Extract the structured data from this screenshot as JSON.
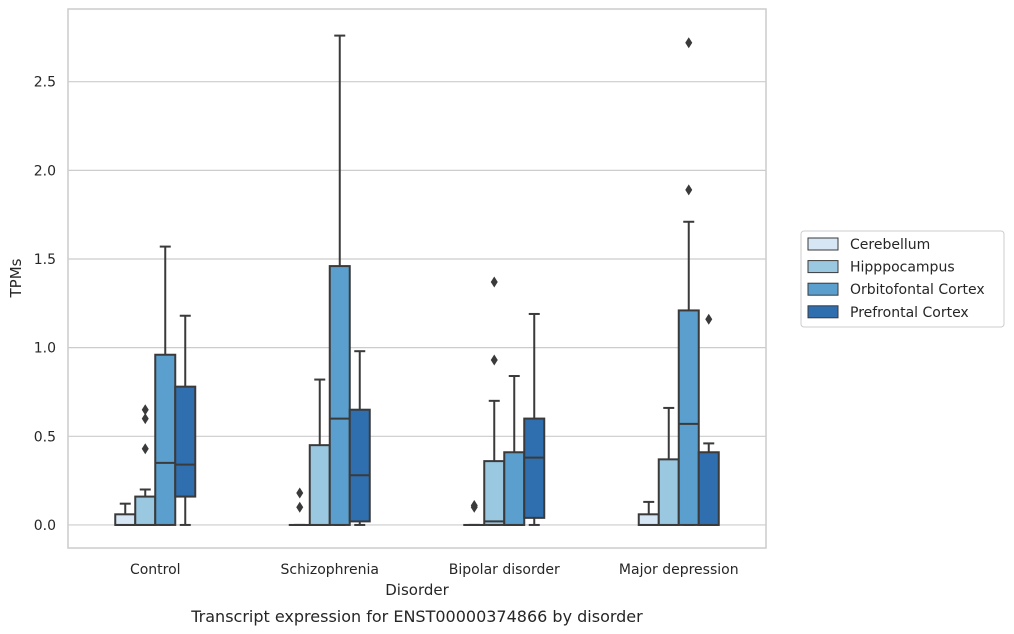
{
  "caption": "Transcript expression for ENST00000374866 by disorder",
  "chart_data": {
    "type": "box",
    "xlabel": "Disorder",
    "ylabel": "TPMs",
    "ylim": [
      -0.13,
      2.91
    ],
    "yticks": [
      "0.0",
      "0.5",
      "1.0",
      "1.5",
      "2.0",
      "2.5"
    ],
    "grid": "horizontal",
    "legend_position": "right",
    "categories": [
      "Control",
      "Schizophrenia",
      "Bipolar disorder",
      "Major depression"
    ],
    "series": [
      {
        "name": "Cerebellum",
        "color": "#d6e6f4",
        "boxes": [
          {
            "min": 0.0,
            "q1": 0.0,
            "median": 0.0,
            "q3": 0.06,
            "max": 0.12,
            "outliers": []
          },
          {
            "min": 0.0,
            "q1": 0.0,
            "median": 0.0,
            "q3": 0.0,
            "max": 0.0,
            "outliers": [
              0.1,
              0.18
            ]
          },
          {
            "min": 0.0,
            "q1": 0.0,
            "median": 0.0,
            "q3": 0.0,
            "max": 0.0,
            "outliers": [
              0.1,
              0.11
            ]
          },
          {
            "min": 0.0,
            "q1": 0.0,
            "median": 0.0,
            "q3": 0.06,
            "max": 0.13,
            "outliers": []
          }
        ]
      },
      {
        "name": "Hipppocampus",
        "color": "#9ac8e0",
        "boxes": [
          {
            "min": 0.0,
            "q1": 0.0,
            "median": 0.0,
            "q3": 0.16,
            "max": 0.2,
            "outliers": [
              0.43,
              0.6,
              0.65
            ]
          },
          {
            "min": 0.0,
            "q1": 0.0,
            "median": 0.0,
            "q3": 0.45,
            "max": 0.82,
            "outliers": []
          },
          {
            "min": 0.0,
            "q1": 0.0,
            "median": 0.02,
            "q3": 0.36,
            "max": 0.7,
            "outliers": [
              0.93,
              1.37
            ]
          },
          {
            "min": 0.0,
            "q1": 0.0,
            "median": 0.0,
            "q3": 0.37,
            "max": 0.66,
            "outliers": []
          }
        ]
      },
      {
        "name": "Orbitofontal Cortex",
        "color": "#5a9fcd",
        "boxes": [
          {
            "min": 0.0,
            "q1": 0.0,
            "median": 0.35,
            "q3": 0.96,
            "max": 1.57,
            "outliers": []
          },
          {
            "min": 0.0,
            "q1": 0.0,
            "median": 0.6,
            "q3": 1.46,
            "max": 2.76,
            "outliers": []
          },
          {
            "min": 0.0,
            "q1": 0.0,
            "median": 0.0,
            "q3": 0.41,
            "max": 0.84,
            "outliers": []
          },
          {
            "min": 0.0,
            "q1": 0.0,
            "median": 0.57,
            "q3": 1.21,
            "max": 1.71,
            "outliers": [
              1.89,
              2.72
            ]
          }
        ]
      },
      {
        "name": "Prefrontal Cortex",
        "color": "#2f6fb0",
        "boxes": [
          {
            "min": 0.0,
            "q1": 0.16,
            "median": 0.34,
            "q3": 0.78,
            "max": 1.18,
            "outliers": []
          },
          {
            "min": 0.0,
            "q1": 0.02,
            "median": 0.28,
            "q3": 0.65,
            "max": 0.98,
            "outliers": []
          },
          {
            "min": 0.0,
            "q1": 0.04,
            "median": 0.38,
            "q3": 0.6,
            "max": 1.19,
            "outliers": []
          },
          {
            "min": 0.0,
            "q1": 0.0,
            "median": 0.0,
            "q3": 0.41,
            "max": 0.46,
            "outliers": [
              1.16
            ]
          }
        ]
      }
    ]
  }
}
